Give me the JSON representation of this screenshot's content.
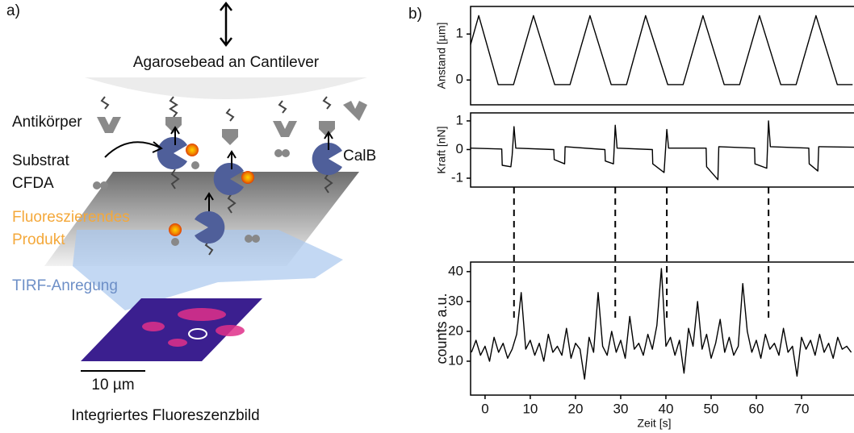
{
  "panel_a": {
    "label": "a)",
    "bead": "Agarosebead an Cantilever",
    "antibody": "Antikörper",
    "substrate": [
      "Substrat",
      "CFDA"
    ],
    "product": [
      "Fluoreszierendes",
      "Produkt"
    ],
    "tirf": "TIRF-Anregung",
    "enzyme": "CalB",
    "scale": "10 µm",
    "caption": "Integriertes Fluoreszenzbild"
  },
  "panel_b_label": "b)",
  "chart_data": [
    {
      "type": "line",
      "ylabel": "Anstand [µm]",
      "color": "#000000",
      "x": [
        -3.2,
        -1.4,
        2.9,
        6.3,
        10.7,
        15.4,
        18.8,
        23.2,
        27.9,
        31.3,
        35.5,
        40.4,
        43.8,
        48.2,
        52.9,
        56.3,
        60.7,
        65.4,
        68.8,
        73.2,
        77.9,
        81.3
      ],
      "values": [
        0.77,
        1.4,
        -0.1,
        -0.1,
        1.4,
        -0.1,
        -0.1,
        1.4,
        -0.1,
        -0.1,
        1.4,
        -0.1,
        -0.1,
        1.4,
        -0.1,
        -0.1,
        1.4,
        -0.1,
        -0.1,
        1.4,
        -0.1,
        -0.1
      ],
      "xlim": [
        -3.2,
        81.6
      ],
      "ylim": [
        -0.54,
        1.6
      ],
      "yticks": [
        0,
        1
      ]
    },
    {
      "type": "line",
      "ylabel": "Kraft [nN]",
      "color": "#000000",
      "x": [
        -3.2,
        3.7,
        3.8,
        5.7,
        6.0,
        6.4,
        6.8,
        15.2,
        15.3,
        17.6,
        17.7,
        26.5,
        26.6,
        28.4,
        28.8,
        29.2,
        37.0,
        37.1,
        39.6,
        40.2,
        40.6,
        48.9,
        49.0,
        51.5,
        51.7,
        59.6,
        59.7,
        62.3,
        62.7,
        63.1,
        71.6,
        71.7,
        73.6,
        73.8,
        81.6
      ],
      "values": [
        0.05,
        0.02,
        -0.55,
        -0.6,
        -0.2,
        0.8,
        0.05,
        0.0,
        -0.35,
        -0.5,
        0.1,
        0.0,
        -0.4,
        -0.5,
        0.85,
        0.05,
        0.0,
        -0.5,
        -0.8,
        0.7,
        0.05,
        0.05,
        -0.6,
        -1.05,
        0.1,
        0.05,
        -0.5,
        -0.65,
        1.0,
        0.1,
        0.05,
        -0.5,
        -0.75,
        0.1,
        0.08
      ],
      "xlim": [
        -3.2,
        81.6
      ],
      "ylim": [
        -1.31,
        1.28
      ],
      "yticks": [
        -1,
        0,
        1
      ]
    },
    {
      "type": "line",
      "ylabel": "counts a.u.",
      "xlabel": "Zeit [s]",
      "color": "#000000",
      "x": [
        -3,
        -2,
        -1,
        0,
        1,
        2,
        3,
        4,
        5,
        6,
        7,
        8,
        9,
        10,
        11,
        12,
        13,
        14,
        15,
        16,
        17,
        18,
        19,
        20,
        21,
        22,
        23,
        24,
        25,
        26,
        27,
        28,
        29,
        30,
        31,
        32,
        33,
        34,
        35,
        36,
        37,
        38,
        39,
        40,
        41,
        42,
        43,
        44,
        45,
        46,
        47,
        48,
        49,
        50,
        51,
        52,
        53,
        54,
        55,
        56,
        57,
        58,
        59,
        60,
        61,
        62,
        63,
        64,
        65,
        66,
        67,
        68,
        69,
        70,
        71,
        72,
        73,
        74,
        75,
        76,
        77,
        78,
        79,
        80,
        81
      ],
      "values": [
        13,
        17,
        12,
        15,
        10,
        18,
        13,
        16,
        11,
        14,
        19,
        33,
        14,
        17,
        12,
        16,
        10,
        19,
        13,
        15,
        12,
        21,
        11,
        16,
        14,
        4,
        18,
        13,
        33,
        15,
        12,
        20,
        13,
        17,
        11,
        25,
        14,
        16,
        12,
        19,
        14,
        22,
        41,
        15,
        18,
        12,
        17,
        6,
        21,
        15,
        30,
        14,
        19,
        11,
        16,
        24,
        13,
        18,
        12,
        15,
        36,
        20,
        13,
        17,
        11,
        19,
        14,
        16,
        12,
        21,
        13,
        15,
        5,
        18,
        14,
        17,
        12,
        19,
        13,
        16,
        11,
        18,
        14,
        15,
        13
      ],
      "xlim": [
        -3.2,
        81.6
      ],
      "ylim": [
        -1.35,
        43.2
      ],
      "yticks": [
        10,
        20,
        30,
        40
      ],
      "xticks": [
        0,
        10,
        20,
        30,
        40,
        50,
        60,
        70
      ],
      "markers": [
        6.4,
        28.8,
        40.2,
        62.7
      ]
    }
  ]
}
